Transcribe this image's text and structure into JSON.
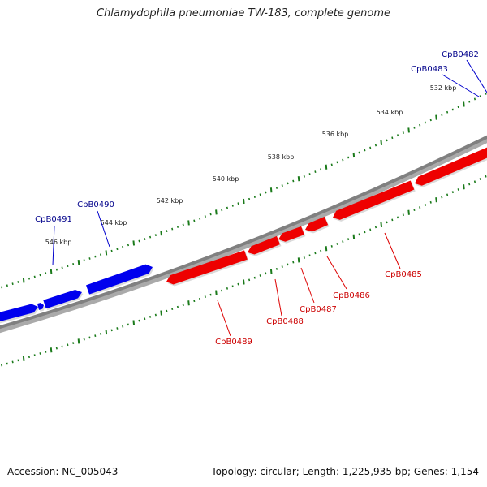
{
  "title": "Chlamydophila pneumoniae TW-183, complete genome",
  "footer": {
    "accession": "Accession: NC_005043",
    "stats": "Topology: circular; Length: 1,225,935 bp; Genes: 1,154"
  },
  "colors": {
    "forward_gene": "#0000ee",
    "reverse_gene": "#ee0000",
    "backbone": "#808080",
    "ticks": "#1a7a1a",
    "forward_label": "#00008b",
    "reverse_label": "#cc0000"
  },
  "ruler": [
    {
      "kbp": 532,
      "label": "532 kbp"
    },
    {
      "kbp": 534,
      "label": "534 kbp"
    },
    {
      "kbp": 536,
      "label": "536 kbp"
    },
    {
      "kbp": 538,
      "label": "538 kbp"
    },
    {
      "kbp": 540,
      "label": "540 kbp"
    },
    {
      "kbp": 542,
      "label": "542 kbp"
    },
    {
      "kbp": 544,
      "label": "544 kbp"
    },
    {
      "kbp": 546,
      "label": "546 kbp"
    }
  ],
  "genes": [
    {
      "name": "CpB0482",
      "strand": "forward"
    },
    {
      "name": "CpB0483",
      "strand": "forward"
    },
    {
      "name": "CpB0485",
      "strand": "reverse"
    },
    {
      "name": "CpB0486",
      "strand": "reverse"
    },
    {
      "name": "CpB0487",
      "strand": "reverse"
    },
    {
      "name": "CpB0488",
      "strand": "reverse"
    },
    {
      "name": "CpB0489",
      "strand": "reverse"
    },
    {
      "name": "CpB0490",
      "strand": "forward"
    },
    {
      "name": "CpB0491",
      "strand": "forward"
    }
  ]
}
